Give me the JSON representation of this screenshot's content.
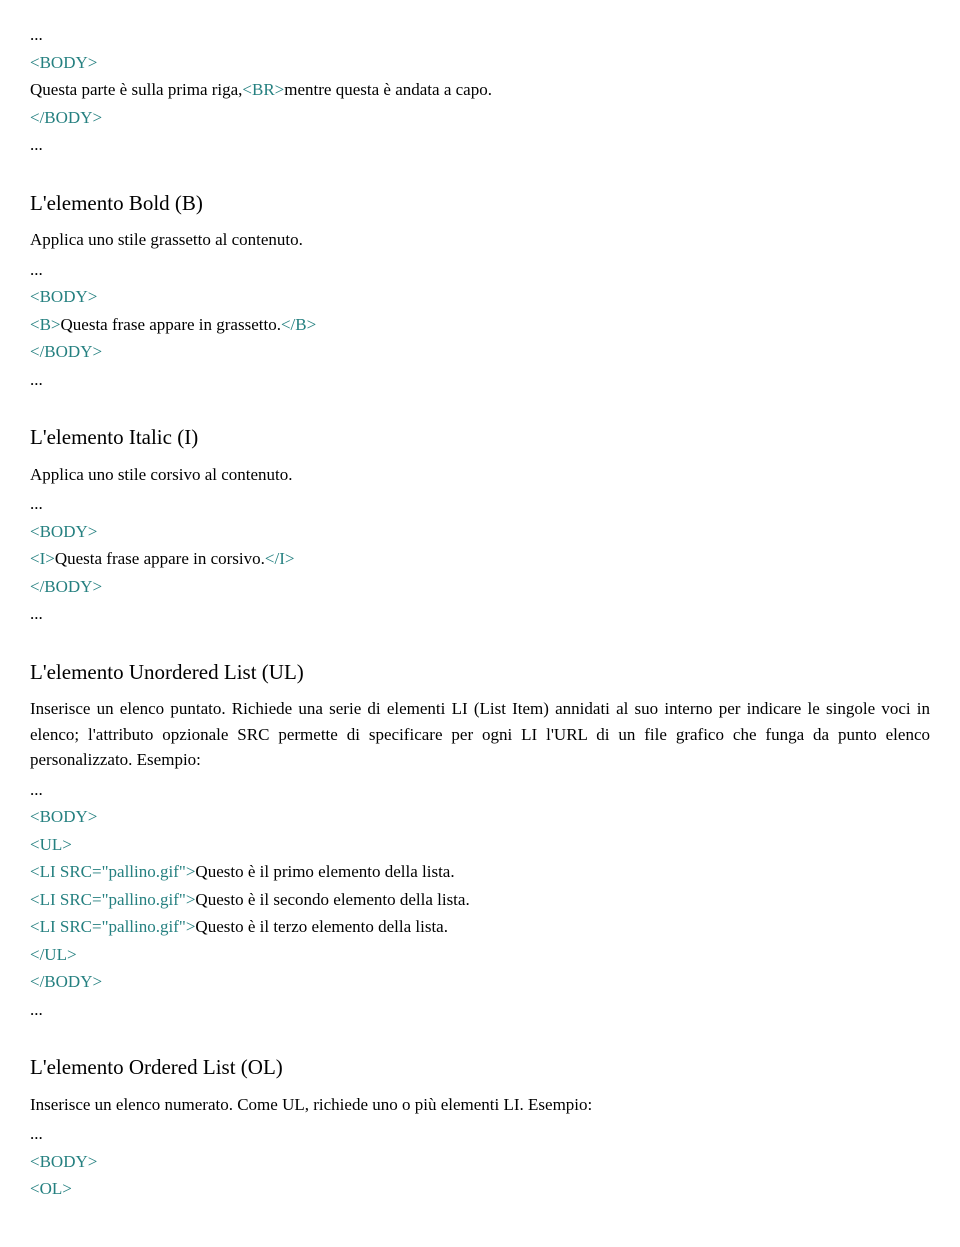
{
  "colors": {
    "code_tag": "#258080",
    "body_text": "#000000",
    "background": "#ffffff"
  },
  "typography": {
    "body_fontsize": 17,
    "heading_fontsize": 21,
    "font_family": "Georgia, Times New Roman, serif"
  },
  "sec1": {
    "ellipsis": "...",
    "body_open": "<BODY>",
    "line_part1": "Questa parte è sulla prima riga,",
    "br_tag": "<BR>",
    "line_part2": "mentre questa è andata a capo.",
    "body_close": "</BODY>"
  },
  "sec2": {
    "heading": "L'elemento Bold (B)",
    "desc": "Applica uno stile grassetto al contenuto.",
    "ellipsis": "...",
    "body_open": "<BODY>",
    "b_open": "<B>",
    "b_text": "Questa frase appare in grassetto.",
    "b_close": "</B>",
    "body_close": "</BODY>"
  },
  "sec3": {
    "heading": "L'elemento Italic (I)",
    "desc": "Applica uno stile corsivo al contenuto.",
    "ellipsis": "...",
    "body_open": "<BODY>",
    "i_open": "<I>",
    "i_text": "Questa frase appare in corsivo.",
    "i_close": "</I>",
    "body_close": "</BODY>"
  },
  "sec4": {
    "heading": "L'elemento Unordered List (UL)",
    "desc": "Inserisce un elenco puntato. Richiede una serie di elementi LI (List Item) annidati al suo interno per indicare le singole voci in elenco; l'attributo opzionale SRC permette di specificare per ogni LI l'URL di un file grafico che funga da punto elenco personalizzato. Esempio:",
    "ellipsis": "...",
    "body_open": "<BODY>",
    "ul_open": "<UL>",
    "li1_tag": "<LI SRC=\"pallino.gif\">",
    "li1_text": "Questo è il primo elemento della lista.",
    "li2_tag": "<LI SRC=\"pallino.gif\">",
    "li2_text": "Questo è il secondo elemento della lista.",
    "li3_tag": "<LI SRC=\"pallino.gif\">",
    "li3_text": "Questo è il terzo elemento della lista.",
    "ul_close": "</UL>",
    "body_close": "</BODY>"
  },
  "sec5": {
    "heading": "L'elemento Ordered List (OL)",
    "desc": "Inserisce un elenco numerato. Come UL, richiede uno o più elementi LI. Esempio:",
    "ellipsis": "...",
    "body_open": "<BODY>",
    "ol_open": "<OL>"
  }
}
